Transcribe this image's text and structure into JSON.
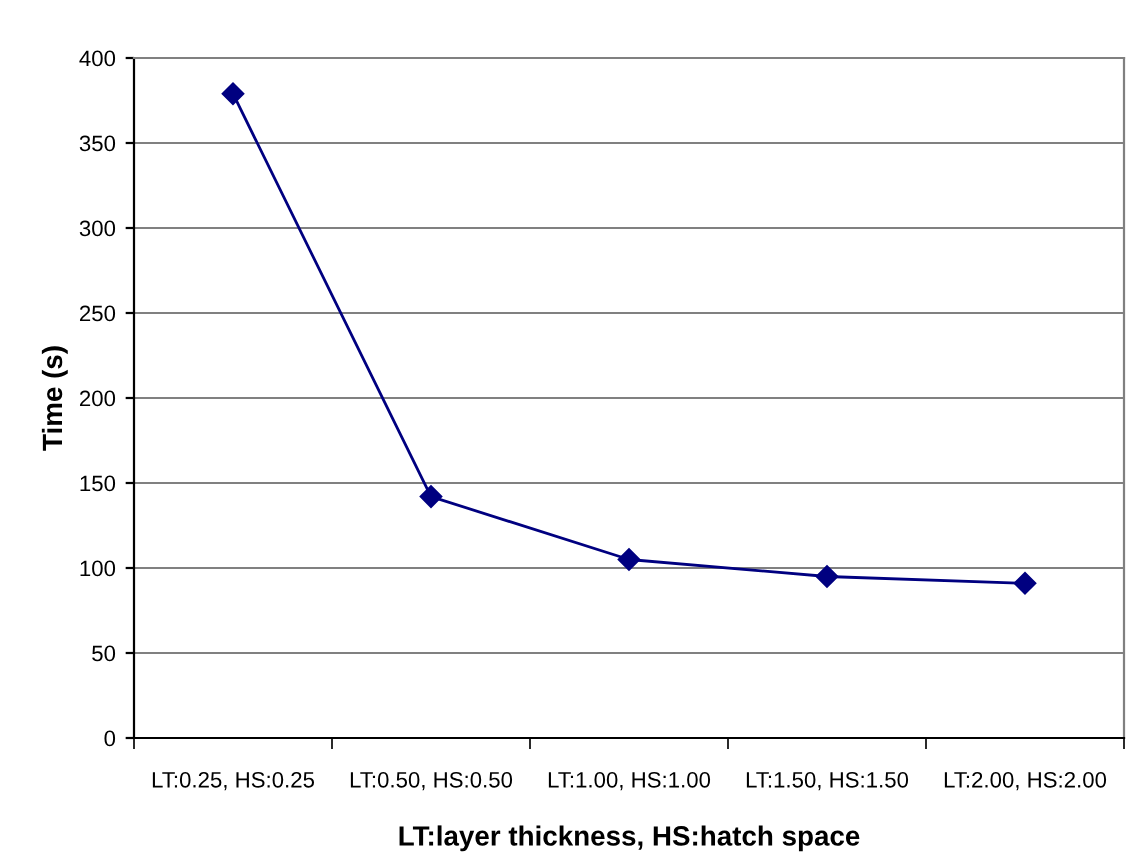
{
  "chart_data": {
    "type": "line",
    "xlabel": "LT:layer thickness, HS:hatch space",
    "ylabel": "Time (s)",
    "categories": [
      "LT:0.25, HS:0.25",
      "LT:0.50, HS:0.50",
      "LT:1.00, HS:1.00",
      "LT:1.50, HS:1.50",
      "LT:2.00, HS:2.00"
    ],
    "series": [
      {
        "color": "#000080",
        "values": [
          379,
          142,
          105,
          95,
          91
        ]
      }
    ],
    "ylim": [
      0,
      400
    ],
    "yticks": [
      0,
      50,
      100,
      150,
      200,
      250,
      300,
      350,
      400
    ],
    "grid": "y",
    "legend": false,
    "marker": "diamond",
    "line_style": "solid"
  }
}
